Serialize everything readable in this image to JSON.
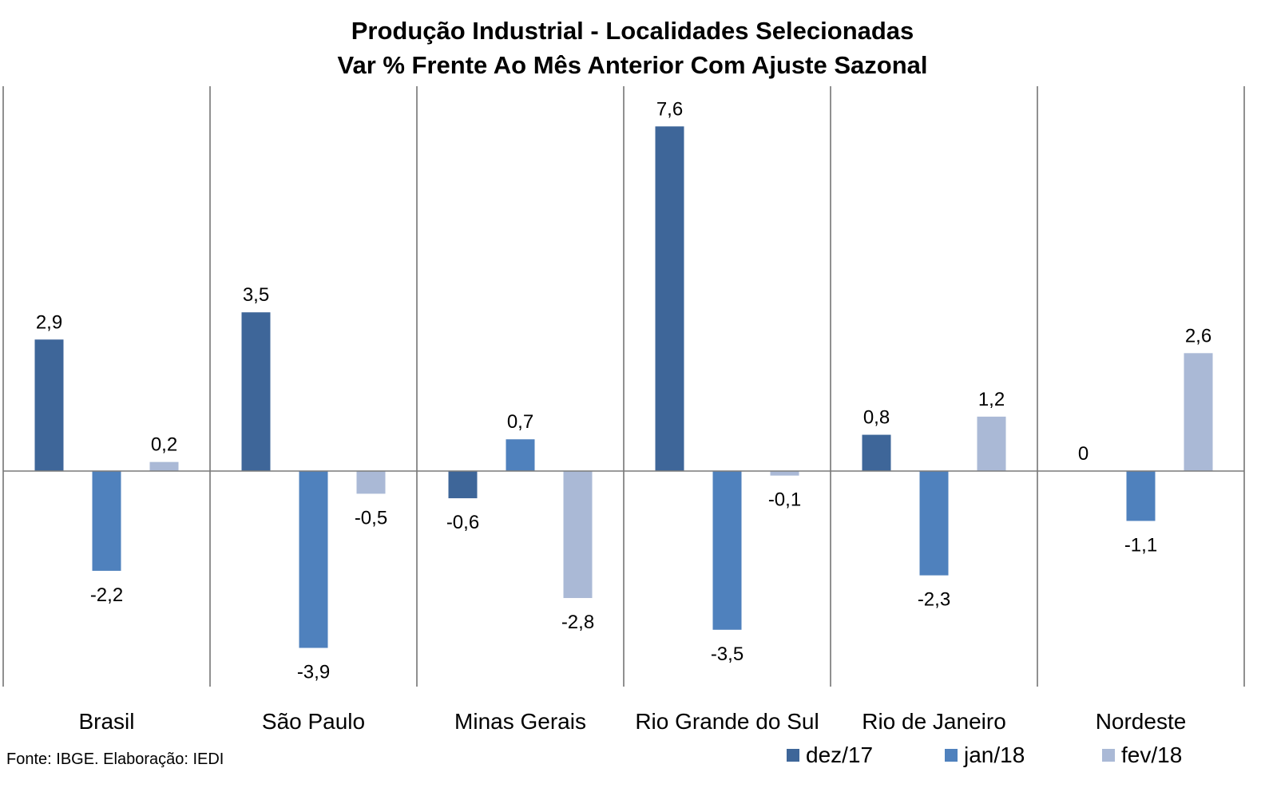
{
  "chart_data": {
    "type": "bar",
    "title": "Produção Industrial - Localidades Selecionadas",
    "subtitle": "Var % Frente Ao Mês Anterior Com Ajuste Sazonal",
    "categories": [
      "Brasil",
      "São Paulo",
      "Minas Gerais",
      "Rio Grande do Sul",
      "Rio de Janeiro",
      "Nordeste"
    ],
    "series": [
      {
        "name": "dez/17",
        "color": "#3e6699",
        "values": [
          2.9,
          3.5,
          -0.6,
          7.6,
          0.8,
          0
        ]
      },
      {
        "name": "jan/18",
        "color": "#4f81bd",
        "values": [
          -2.2,
          -3.9,
          0.7,
          -3.5,
          -2.3,
          -1.1
        ]
      },
      {
        "name": "fev/18",
        "color": "#aab9d6",
        "values": [
          0.2,
          -0.5,
          -2.8,
          -0.1,
          1.2,
          2.6
        ]
      }
    ],
    "data_labels": [
      [
        "2,9",
        "3,5",
        "-0,6",
        "7,6",
        "0,8",
        "0"
      ],
      [
        "-2,2",
        "-3,9",
        "0,7",
        "-3,5",
        "-2,3",
        "-1,1"
      ],
      [
        "0,2",
        "-0,5",
        "-2,8",
        "-0,1",
        "1,2",
        "2,6"
      ]
    ],
    "ylim": [
      -4.8,
      8.5
    ],
    "legend_position": "bottom-right",
    "grid": false
  },
  "source": "Fonte: IBGE. Elaboração: IEDI"
}
